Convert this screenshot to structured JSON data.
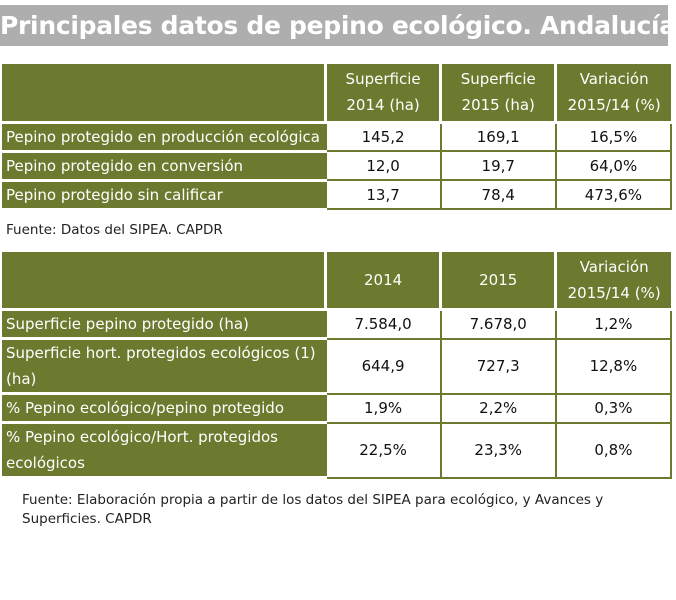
{
  "title": "Principales datos de pepino ecológico. Andalucía",
  "table1": {
    "headers": [
      "",
      "Superficie 2014 (ha)",
      "Superficie 2015 (ha)",
      "Variación 2015/14 (%)"
    ],
    "rows": [
      {
        "label": "Pepino protegido en producción ecológica",
        "v2014": "145,2",
        "v2015": "169,1",
        "var": "16,5%"
      },
      {
        "label": "Pepino protegido en conversión",
        "v2014": "12,0",
        "v2015": "19,7",
        "var": "64,0%"
      },
      {
        "label": "Pepino protegido sin calificar",
        "v2014": "13,7",
        "v2015": "78,4",
        "var": "473,6%"
      }
    ],
    "source": "Fuente: Datos del SIPEA. CAPDR"
  },
  "table2": {
    "headers": [
      "",
      "2014",
      "2015",
      "Variación 2015/14 (%)"
    ],
    "rows": [
      {
        "label": "Superficie pepino protegido (ha)",
        "v2014": "7.584,0",
        "v2015": "7.678,0",
        "var": "1,2%"
      },
      {
        "label": "Superficie hort. protegidos ecológicos (1) (ha)",
        "v2014": "644,9",
        "v2015": "727,3",
        "var": "12,8%"
      },
      {
        "label": "% Pepino ecológico/pepino protegido",
        "v2014": "1,9%",
        "v2015": "2,2%",
        "var": "0,3%"
      },
      {
        "label": "% Pepino ecológico/Hort. protegidos ecológicos",
        "v2014": "22,5%",
        "v2015": "23,3%",
        "var": "0,8%"
      }
    ],
    "source": "Fuente: Elaboración propia a partir de los datos del SIPEA para ecológico, y Avances y  Superficies.  CAPDR"
  }
}
